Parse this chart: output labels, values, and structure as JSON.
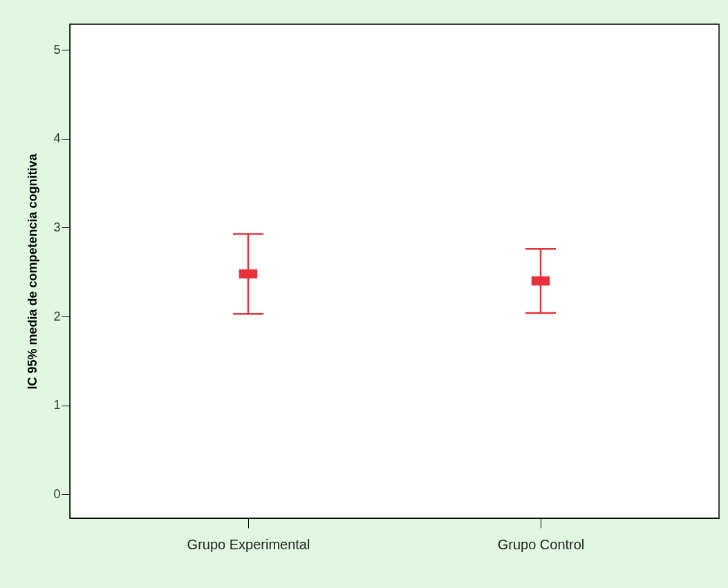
{
  "chart_data": {
    "type": "scatter",
    "ylabel": "IC 95% media de competencia cognitiva",
    "categories": [
      "Grupo Experimental",
      "Grupo Control"
    ],
    "values": [
      2.48,
      2.4
    ],
    "errors": [
      [
        2.03,
        2.93
      ],
      [
        2.04,
        2.76
      ]
    ],
    "color": "#e8303a",
    "marker": "square",
    "ylim": [
      -0.27,
      5.29
    ],
    "yticks": [
      0,
      1,
      2,
      3,
      4,
      5
    ],
    "grid": false
  }
}
